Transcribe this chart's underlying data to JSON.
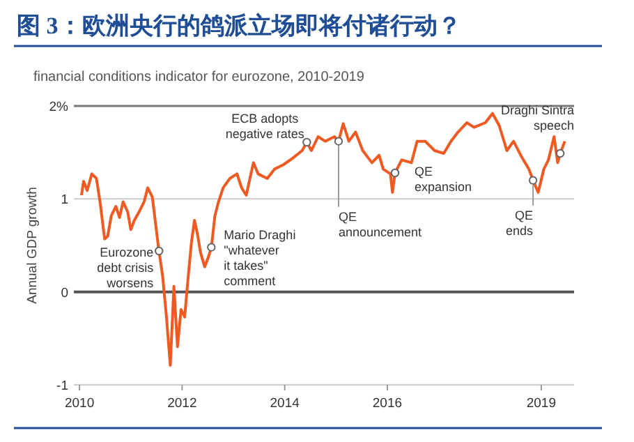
{
  "chart_data": {
    "type": "line",
    "title": "图 3：欧洲央行的鸽派立场即将付诸行动？",
    "subtitle": "financial conditions indicator for eurozone, 2010-2019",
    "ylabel": "Annual GDP growth",
    "xlim": [
      2009.89,
      2019.64
    ],
    "xticks": [
      2010,
      2012,
      2014,
      2016,
      2019
    ],
    "ylim": [
      -1,
      2
    ],
    "yticks": [
      {
        "value": 2,
        "label": "2%"
      },
      1,
      0,
      -1
    ],
    "marker": "none",
    "line_style": "solid",
    "ref_lines": [
      {
        "axis": "y",
        "value": 2,
        "color": "#777777"
      },
      {
        "axis": "y",
        "value": 1,
        "color": "#cccccc"
      },
      {
        "axis": "y",
        "value": 0,
        "color": "#555555"
      }
    ],
    "series": [
      {
        "color": "#f05a22",
        "x": [
          2010.04,
          2010.08,
          2010.15,
          2010.24,
          2010.33,
          2010.4,
          2010.49,
          2010.55,
          2010.62,
          2010.71,
          2010.78,
          2010.85,
          2010.94,
          2011.0,
          2011.07,
          2011.17,
          2011.26,
          2011.33,
          2011.42,
          2011.53,
          2011.55,
          2011.62,
          2011.69,
          2011.77,
          2011.84,
          2011.91,
          2011.98,
          2012.05,
          2012.12,
          2012.18,
          2012.24,
          2012.3,
          2012.36,
          2012.44,
          2012.51,
          2012.57,
          2012.64,
          2012.71,
          2012.8,
          2012.93,
          2013.07,
          2013.16,
          2013.25,
          2013.39,
          2013.48,
          2013.66,
          2013.8,
          2013.98,
          2014.16,
          2014.34,
          2014.43,
          2014.52,
          2014.65,
          2014.79,
          2014.97,
          2015.05,
          2015.14,
          2015.25,
          2015.38,
          2015.52,
          2015.7,
          2015.84,
          2015.92,
          2016.06,
          2016.1,
          2016.15,
          2016.28,
          2016.47,
          2016.58,
          2016.74,
          2016.92,
          2017.1,
          2017.24,
          2017.38,
          2017.55,
          2017.69,
          2017.91,
          2018.05,
          2018.18,
          2018.33,
          2018.46,
          2018.6,
          2018.76,
          2018.84,
          2018.94,
          2019.05,
          2019.14,
          2019.25,
          2019.32,
          2019.37,
          2019.46
        ],
        "values": [
          1.04,
          1.19,
          1.09,
          1.27,
          1.22,
          0.97,
          0.57,
          0.6,
          0.82,
          0.92,
          0.8,
          0.97,
          0.86,
          0.67,
          0.77,
          0.87,
          0.97,
          1.12,
          1.02,
          0.52,
          0.44,
          0.17,
          -0.24,
          -0.79,
          0.06,
          -0.59,
          -0.19,
          -0.27,
          0.17,
          0.52,
          0.77,
          0.62,
          0.42,
          0.27,
          0.37,
          0.48,
          0.82,
          0.97,
          1.12,
          1.22,
          1.27,
          1.12,
          1.04,
          1.39,
          1.27,
          1.22,
          1.32,
          1.37,
          1.44,
          1.52,
          1.61,
          1.52,
          1.67,
          1.62,
          1.67,
          1.62,
          1.81,
          1.62,
          1.72,
          1.52,
          1.39,
          1.47,
          1.32,
          1.27,
          1.07,
          1.28,
          1.42,
          1.39,
          1.62,
          1.62,
          1.52,
          1.49,
          1.62,
          1.72,
          1.82,
          1.77,
          1.82,
          1.92,
          1.79,
          1.52,
          1.62,
          1.47,
          1.32,
          1.2,
          1.07,
          1.32,
          1.42,
          1.67,
          1.39,
          1.49,
          1.62
        ]
      }
    ],
    "annotations": [
      {
        "text": "Eurozone\ndebt crisis\nworsens",
        "x": 2011.55,
        "y": 0.44
      },
      {
        "text": "Mario Draghi\n\"whatever\nit takes\"\ncomment",
        "x": 2012.57,
        "y": 0.48
      },
      {
        "text": "ECB adopts\nnegative rates",
        "x": 2014.43,
        "y": 1.61
      },
      {
        "text": "QE\nannouncement",
        "x": 2015.05,
        "y": 1.62
      },
      {
        "text": "QE\nexpansion",
        "x": 2016.15,
        "y": 1.28
      },
      {
        "text": "QE\nends",
        "x": 2018.84,
        "y": 1.2
      },
      {
        "text": "Draghi Sintra\nspeech",
        "x": 2019.37,
        "y": 1.49
      }
    ]
  }
}
